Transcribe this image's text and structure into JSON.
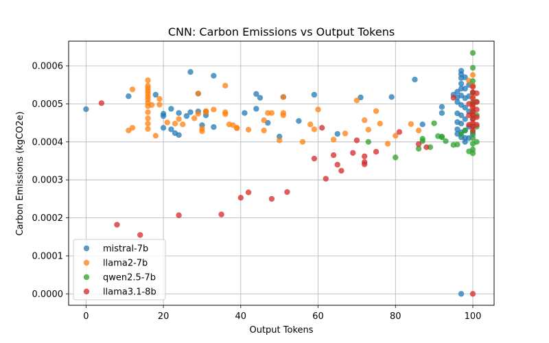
{
  "chart_data": {
    "type": "scatter",
    "title": "CNN: Carbon Emissions vs Output Tokens",
    "xlabel": "Output Tokens",
    "ylabel": "Carbon Emissions (kgCO2e)",
    "xlim": [
      -4.5,
      105.5
    ],
    "ylim": [
      -3e-05,
      0.000665
    ],
    "xticks": [
      0,
      20,
      40,
      60,
      80,
      100
    ],
    "xtick_labels": [
      "0",
      "20",
      "40",
      "60",
      "80",
      "100"
    ],
    "yticks": [
      0,
      0.0001,
      0.0002,
      0.0003,
      0.0004,
      0.0005,
      0.0006
    ],
    "ytick_labels": [
      "0.0000",
      "0.0001",
      "0.0002",
      "0.0003",
      "0.0004",
      "0.0005",
      "0.0006"
    ],
    "grid": true,
    "legend_position": "lower-left",
    "series": [
      {
        "name": "mistral-7b",
        "color": "#1f77b4",
        "points": [
          [
            0,
            0.000486
          ],
          [
            11,
            0.00052
          ],
          [
            18,
            0.000524
          ],
          [
            20,
            0.000474
          ],
          [
            20,
            0.000468
          ],
          [
            20,
            0.000437
          ],
          [
            22,
            0.000487
          ],
          [
            22,
            0.000433
          ],
          [
            23,
            0.000423
          ],
          [
            24,
            0.000418
          ],
          [
            24,
            0.000476
          ],
          [
            26,
            0.000468
          ],
          [
            27,
            0.000584
          ],
          [
            27,
            0.000478
          ],
          [
            29,
            0.000527
          ],
          [
            29,
            0.00048
          ],
          [
            30,
            0.000444
          ],
          [
            31,
            0.00047
          ],
          [
            31,
            0.000479
          ],
          [
            33,
            0.000574
          ],
          [
            33,
            0.000439
          ],
          [
            41,
            0.000476
          ],
          [
            44,
            0.000526
          ],
          [
            44,
            0.000487
          ],
          [
            45,
            0.000516
          ],
          [
            47,
            0.00045
          ],
          [
            50,
            0.000414
          ],
          [
            51,
            0.000518
          ],
          [
            55,
            0.000455
          ],
          [
            59,
            0.000524
          ],
          [
            65,
            0.000421
          ],
          [
            71,
            0.000517
          ],
          [
            79,
            0.000518
          ],
          [
            85,
            0.000564
          ],
          [
            87,
            0.000446
          ],
          [
            92,
            0.000492
          ],
          [
            92,
            0.000476
          ],
          [
            95,
            0.000524
          ],
          [
            96,
            0.000532
          ],
          [
            96,
            0.000517
          ],
          [
            96,
            0.000505
          ],
          [
            96,
            0.000475
          ],
          [
            96,
            0.000452
          ],
          [
            96,
            0.000433
          ],
          [
            96,
            0.000421
          ],
          [
            97,
            0.000587
          ],
          [
            97,
            0.000578
          ],
          [
            97,
            0.000568
          ],
          [
            97,
            0.000553
          ],
          [
            97,
            0.00054
          ],
          [
            97,
            0.000522
          ],
          [
            97,
            0.000497
          ],
          [
            97,
            0.00047
          ],
          [
            97,
            0.000448
          ],
          [
            97,
            0.000425
          ],
          [
            97,
            0.000412
          ],
          [
            97,
            0.0
          ],
          [
            98,
            0.00057
          ],
          [
            98,
            0.00054
          ],
          [
            98,
            0.000515
          ],
          [
            98,
            0.00049
          ],
          [
            98,
            0.00046
          ],
          [
            98,
            0.00043
          ],
          [
            98,
            0.00041
          ],
          [
            98,
            0.0004
          ],
          [
            99,
            0.00055
          ],
          [
            99,
            0.00052
          ],
          [
            99,
            0.00048
          ],
          [
            99,
            0.00044
          ],
          [
            99,
            0.00041
          ],
          [
            100,
            0.00053
          ],
          [
            100,
            0.0005
          ],
          [
            100,
            0.00047
          ],
          [
            100,
            0.00042
          ]
        ]
      },
      {
        "name": "llama2-7b",
        "color": "#ff7f0e",
        "points": [
          [
            11,
            0.00043
          ],
          [
            12,
            0.000538
          ],
          [
            12,
            0.000437
          ],
          [
            16,
            0.000562
          ],
          [
            16,
            0.000548
          ],
          [
            16,
            0.000541
          ],
          [
            16,
            0.000534
          ],
          [
            16,
            0.000527
          ],
          [
            16,
            0.000519
          ],
          [
            16,
            0.000512
          ],
          [
            16,
            0.000503
          ],
          [
            16,
            0.000494
          ],
          [
            16,
            0.000478
          ],
          [
            16,
            0.000462
          ],
          [
            16,
            0.000448
          ],
          [
            16,
            0.000434
          ],
          [
            17,
            0.000497
          ],
          [
            18,
            0.000416
          ],
          [
            19,
            0.000513
          ],
          [
            19,
            0.000498
          ],
          [
            21,
            0.000451
          ],
          [
            23,
            0.000448
          ],
          [
            24,
            0.00046
          ],
          [
            25,
            0.000446
          ],
          [
            28,
            0.000462
          ],
          [
            29,
            0.000527
          ],
          [
            29,
            0.000474
          ],
          [
            30,
            0.000435
          ],
          [
            30,
            0.000428
          ],
          [
            31,
            0.000481
          ],
          [
            31,
            0.000478
          ],
          [
            33,
            0.000485
          ],
          [
            36,
            0.000548
          ],
          [
            36,
            0.000478
          ],
          [
            36,
            0.000473
          ],
          [
            37,
            0.000446
          ],
          [
            38,
            0.000444
          ],
          [
            39,
            0.000436
          ],
          [
            39,
            0.000437
          ],
          [
            42,
            0.000432
          ],
          [
            46,
            0.000457
          ],
          [
            46,
            0.00043
          ],
          [
            47,
            0.000476
          ],
          [
            48,
            0.000476
          ],
          [
            50,
            0.000404
          ],
          [
            51,
            0.000476
          ],
          [
            51,
            0.00047
          ],
          [
            51,
            0.000518
          ],
          [
            56,
            0.0004
          ],
          [
            58,
            0.000446
          ],
          [
            59,
            0.000433
          ],
          [
            60,
            0.000485
          ],
          [
            64,
            0.000406
          ],
          [
            67,
            0.000422
          ],
          [
            70,
            0.000509
          ],
          [
            72,
            0.000457
          ],
          [
            73,
            0.000432
          ],
          [
            75,
            0.000481
          ],
          [
            76,
            0.000448
          ],
          [
            78,
            0.000395
          ],
          [
            80,
            0.000416
          ],
          [
            84,
            0.000447
          ],
          [
            86,
            0.00043
          ],
          [
            99,
            0.000561
          ],
          [
            100,
            0.000576
          ],
          [
            100,
            0.000548
          ],
          [
            100,
            0.00052
          ],
          [
            100,
            0.000495
          ],
          [
            100,
            0.00047
          ],
          [
            100,
            0.000445
          ]
        ]
      },
      {
        "name": "qwen2.5-7b",
        "color": "#2ca02c",
        "points": [
          [
            73,
            0.0004
          ],
          [
            80,
            0.000359
          ],
          [
            86,
            0.000382
          ],
          [
            87,
            0.000408
          ],
          [
            87,
            0.000402
          ],
          [
            89,
            0.000386
          ],
          [
            90,
            0.000449
          ],
          [
            91,
            0.000415
          ],
          [
            92,
            0.000414
          ],
          [
            92,
            0.000412
          ],
          [
            93,
            0.000402
          ],
          [
            95,
            0.000392
          ],
          [
            96,
            0.000393
          ],
          [
            97,
            0.00042
          ],
          [
            98,
            0.00043
          ],
          [
            99,
            0.000375
          ],
          [
            100,
            0.000634
          ],
          [
            100,
            0.000595
          ],
          [
            100,
            0.00056
          ],
          [
            100,
            0.00053
          ],
          [
            100,
            0.000505
          ],
          [
            100,
            0.00048
          ],
          [
            100,
            0.00046
          ],
          [
            100,
            0.00044
          ],
          [
            100,
            0.000425
          ],
          [
            100,
            0.00041
          ],
          [
            100,
            0.000395
          ],
          [
            100,
            0.00038
          ],
          [
            100,
            0.00037
          ],
          [
            101,
            0.000505
          ],
          [
            101,
            0.00047
          ],
          [
            101,
            0.00044
          ],
          [
            101,
            0.0004
          ]
        ]
      },
      {
        "name": "llama3.1-8b",
        "color": "#d62728",
        "points": [
          [
            4,
            0.000502
          ],
          [
            8,
            0.000182
          ],
          [
            14,
            0.000155
          ],
          [
            24,
            0.000207
          ],
          [
            35,
            0.000209
          ],
          [
            40,
            0.000253
          ],
          [
            42,
            0.000267
          ],
          [
            48,
            0.00025
          ],
          [
            52,
            0.000268
          ],
          [
            59,
            0.000356
          ],
          [
            61,
            0.000437
          ],
          [
            62,
            0.000303
          ],
          [
            64,
            0.000365
          ],
          [
            65,
            0.00034
          ],
          [
            66,
            0.000324
          ],
          [
            69,
            0.000371
          ],
          [
            70,
            0.000404
          ],
          [
            72,
            0.000362
          ],
          [
            72,
            0.000347
          ],
          [
            72,
            0.000341
          ],
          [
            75,
            0.000374
          ],
          [
            81,
            0.000426
          ],
          [
            86,
            0.000394
          ],
          [
            88,
            0.000386
          ],
          [
            95,
            0.000516
          ],
          [
            99,
            0.0005
          ],
          [
            99,
            0.00047
          ],
          [
            99,
            0.000445
          ],
          [
            100,
            0.000545
          ],
          [
            100,
            0.00053
          ],
          [
            100,
            0.000515
          ],
          [
            100,
            0.0005
          ],
          [
            100,
            0.00049
          ],
          [
            100,
            0.00048
          ],
          [
            100,
            0.00047
          ],
          [
            100,
            0.00046
          ],
          [
            100,
            0.00045
          ],
          [
            100,
            0.00044
          ],
          [
            100,
            0.00043
          ],
          [
            100,
            0.0
          ],
          [
            101,
            0.000528
          ],
          [
            101,
            0.000505
          ],
          [
            101,
            0.000485
          ],
          [
            101,
            0.000465
          ],
          [
            101,
            0.000445
          ]
        ]
      }
    ]
  }
}
